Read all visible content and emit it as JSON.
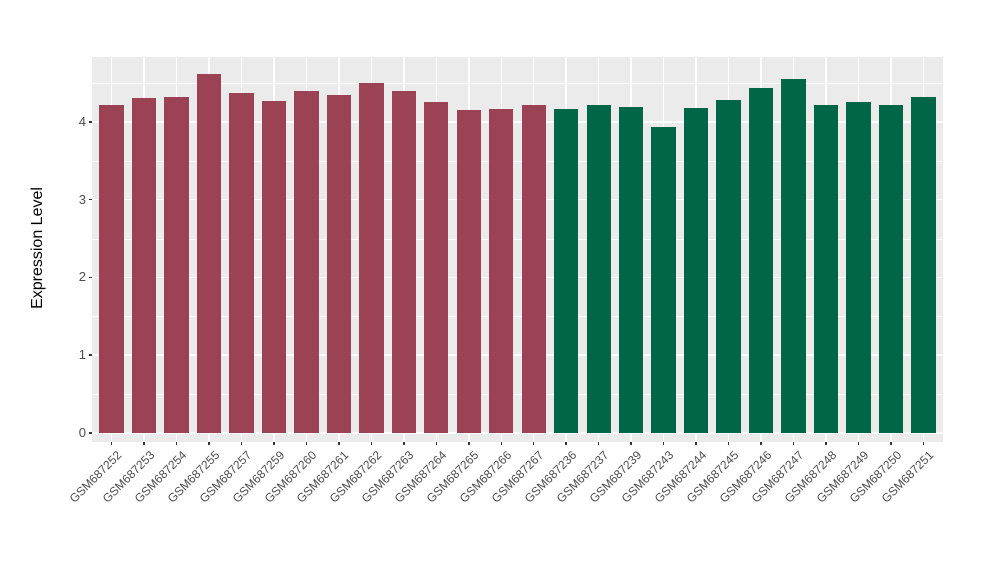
{
  "chart_data": {
    "type": "bar",
    "title": "",
    "xlabel": "",
    "ylabel": "Expression Level",
    "ylim": [
      0,
      4.83
    ],
    "yticks": [
      0,
      1,
      2,
      3,
      4
    ],
    "legend": "none",
    "grid": {
      "major": "on",
      "minor": "on",
      "gridline_color": "#FFFFFF",
      "panel_bg": "#EBEBEB"
    },
    "categories": [
      "GSM687252",
      "GSM687253",
      "GSM687254",
      "GSM687255",
      "GSM687257",
      "GSM687259",
      "GSM687260",
      "GSM687261",
      "GSM687262",
      "GSM687263",
      "GSM687264",
      "GSM687265",
      "GSM687266",
      "GSM687267",
      "GSM687236",
      "GSM687237",
      "GSM687239",
      "GSM687243",
      "GSM687244",
      "GSM687245",
      "GSM687246",
      "GSM687247",
      "GSM687248",
      "GSM687249",
      "GSM687250",
      "GSM687251"
    ],
    "values": [
      4.22,
      4.31,
      4.32,
      4.61,
      4.37,
      4.27,
      4.39,
      4.34,
      4.5,
      4.39,
      4.25,
      4.15,
      4.17,
      4.21,
      4.16,
      4.22,
      4.19,
      3.93,
      4.18,
      4.28,
      4.43,
      4.55,
      4.22,
      4.26,
      4.21,
      4.32
    ],
    "groups": [
      "group1",
      "group1",
      "group1",
      "group1",
      "group1",
      "group1",
      "group1",
      "group1",
      "group1",
      "group1",
      "group1",
      "group1",
      "group1",
      "group1",
      "group2",
      "group2",
      "group2",
      "group2",
      "group2",
      "group2",
      "group2",
      "group2",
      "group2",
      "group2",
      "group2",
      "group2"
    ],
    "group_colors": {
      "group1": "#9B4355",
      "group2": "#006647"
    },
    "bar_width_fraction": 0.75,
    "colors": {
      "tick_mark": "#333333",
      "axis_text": "#4D4D4D",
      "axis_title": "#000000"
    }
  }
}
